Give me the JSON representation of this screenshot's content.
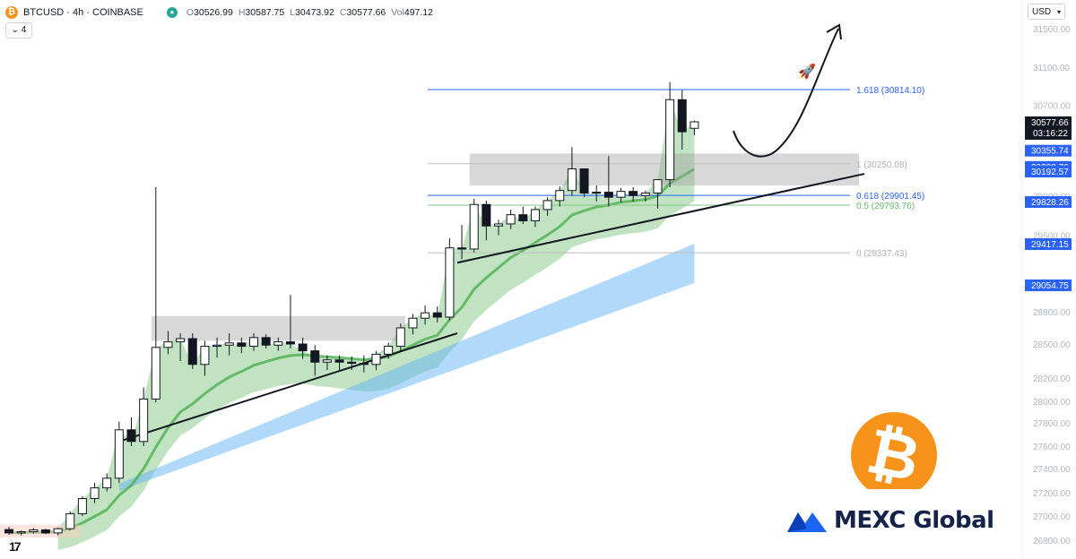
{
  "header": {
    "symbol": "BTCUSD",
    "interval": "4h",
    "exchange": "COINBASE",
    "title": "BTCUSD · 4h · COINBASE",
    "coin_glyph": "₿",
    "open_label": "O",
    "open": "30526.99",
    "high_label": "H",
    "high": "30587.75",
    "low_label": "L",
    "low": "30473.92",
    "close_label": "C",
    "close": "30577.66",
    "vol_label": "Vol",
    "vol": "497.12",
    "collapse_label": "4"
  },
  "currency_button": "USD",
  "tv_logo": "17",
  "mexc": {
    "text": "MEXC Global"
  },
  "btc_logo": {
    "glyph": "₿",
    "color": "#f7931a"
  },
  "colors": {
    "up_candle_fill": "#ffffff",
    "down_candle_fill": "#131722",
    "candle_outline": "#131722",
    "ema_line": "#4caf50",
    "green_band": "#4caf50",
    "blue_band": "#64b5f6",
    "fib_blue": "#2962ff",
    "fib_green": "#81c784",
    "fib_gray": "#9e9e9e",
    "price_label_bg": "#2962ff",
    "last_price_bg": "#131722"
  },
  "chart_data": {
    "type": "candlestick",
    "y_axis_ticks": [
      "31500.00",
      "31100.00",
      "30700.00",
      "29900.00",
      "29500.00",
      "28800.00",
      "28500.00",
      "28200.00",
      "28000.00",
      "27800.00",
      "27600.00",
      "27400.00",
      "27200.00",
      "27000.00",
      "26800.00"
    ],
    "price_labels": [
      {
        "value": 30577.66,
        "text": "30577.66",
        "subtext": "03:16:22",
        "style": "last"
      },
      {
        "value": 30355.74,
        "text": "30355.74",
        "style": "blue"
      },
      {
        "value": 30228.76,
        "text": "30228.76",
        "style": "blue"
      },
      {
        "value": 30192.57,
        "text": "30192.57",
        "style": "blue"
      },
      {
        "value": 29828.26,
        "text": "29828.26",
        "style": "blue"
      },
      {
        "value": 29417.15,
        "text": "29417.15",
        "style": "blue"
      },
      {
        "value": 29054.75,
        "text": "29054.75",
        "style": "blue"
      }
    ],
    "fib_levels": [
      {
        "label": "1.618 (30814.10)",
        "value": 30814.1,
        "color": "blue"
      },
      {
        "label": "1 (30250.08)",
        "value": 30250.08,
        "color": "gray"
      },
      {
        "label": "0.618 (29901.45)",
        "value": 29901.45,
        "color": "blue"
      },
      {
        "label": "0.5 (29793.76)",
        "value": 29793.76,
        "color": "green"
      },
      {
        "label": "0 (29337.43)",
        "value": 29337.43,
        "color": "gray"
      }
    ],
    "resistance_zones": [
      {
        "from": 28530,
        "to": 28760
      },
      {
        "from": 30020,
        "to": 30330
      }
    ],
    "candles": [
      [
        26888,
        26910,
        26845,
        26860
      ],
      [
        26860,
        26880,
        26840,
        26870
      ],
      [
        26870,
        26900,
        26855,
        26885
      ],
      [
        26885,
        26895,
        26850,
        26860
      ],
      [
        26860,
        26905,
        26840,
        26895
      ],
      [
        26895,
        27040,
        26880,
        27020
      ],
      [
        27020,
        27170,
        27000,
        27150
      ],
      [
        27150,
        27280,
        27110,
        27240
      ],
      [
        27240,
        27360,
        27210,
        27320
      ],
      [
        27320,
        27810,
        27280,
        27740
      ],
      [
        27740,
        27850,
        27600,
        27640
      ],
      [
        27640,
        28120,
        27600,
        28020
      ],
      [
        28020,
        30000,
        27990,
        28470
      ],
      [
        28470,
        28620,
        28410,
        28520
      ],
      [
        28520,
        28600,
        28350,
        28550
      ],
      [
        28550,
        28600,
        28280,
        28320
      ],
      [
        28320,
        28530,
        28220,
        28480
      ],
      [
        28480,
        28560,
        28380,
        28490
      ],
      [
        28490,
        28600,
        28400,
        28510
      ],
      [
        28510,
        28560,
        28420,
        28480
      ],
      [
        28480,
        28600,
        28440,
        28560
      ],
      [
        28560,
        28590,
        28460,
        28490
      ],
      [
        28490,
        28560,
        28440,
        28520
      ],
      [
        28520,
        28960,
        28460,
        28500
      ],
      [
        28500,
        28560,
        28370,
        28440
      ],
      [
        28440,
        28490,
        28220,
        28340
      ],
      [
        28340,
        28400,
        28270,
        28360
      ],
      [
        28360,
        28400,
        28260,
        28340
      ],
      [
        28340,
        28390,
        28270,
        28330
      ],
      [
        28330,
        28400,
        28250,
        28320
      ],
      [
        28320,
        28440,
        28270,
        28410
      ],
      [
        28410,
        28510,
        28370,
        28480
      ],
      [
        28480,
        28690,
        28430,
        28650
      ],
      [
        28650,
        28780,
        28590,
        28740
      ],
      [
        28740,
        28860,
        28680,
        28790
      ],
      [
        28790,
        28850,
        28700,
        28750
      ],
      [
        28750,
        29470,
        28720,
        29380
      ],
      [
        29380,
        29600,
        29280,
        29370
      ],
      [
        29370,
        29860,
        29340,
        29800
      ],
      [
        29800,
        29840,
        29450,
        29590
      ],
      [
        29590,
        29650,
        29500,
        29610
      ],
      [
        29610,
        29750,
        29560,
        29700
      ],
      [
        29700,
        29780,
        29610,
        29640
      ],
      [
        29640,
        29780,
        29580,
        29750
      ],
      [
        29750,
        29880,
        29690,
        29840
      ],
      [
        29840,
        30010,
        29780,
        29960
      ],
      [
        29960,
        30380,
        29900,
        30210
      ],
      [
        30210,
        30210,
        29880,
        29930
      ],
      [
        29930,
        30020,
        29830,
        29940
      ],
      [
        29940,
        30310,
        29780,
        29880
      ],
      [
        29880,
        29990,
        29820,
        29950
      ],
      [
        29950,
        30000,
        29830,
        29900
      ],
      [
        29900,
        29960,
        29830,
        29930
      ],
      [
        29930,
        30080,
        29760,
        30090
      ],
      [
        30090,
        30910,
        30000,
        30740
      ],
      [
        30740,
        30810,
        30360,
        30500
      ],
      [
        30526.99,
        30587.75,
        30473.92,
        30577.66
      ]
    ]
  }
}
